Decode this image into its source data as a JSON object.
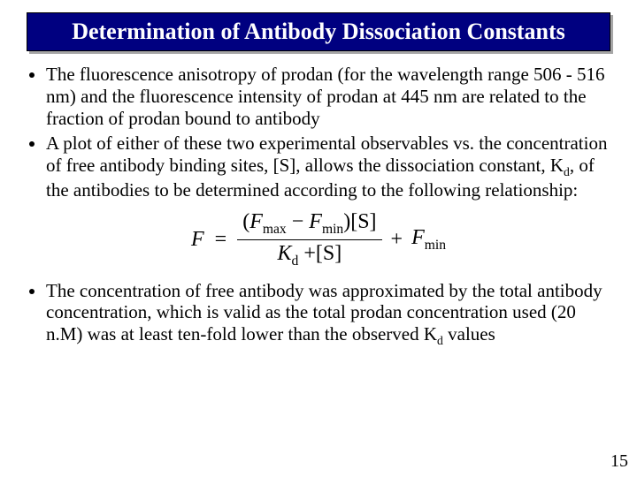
{
  "slide": {
    "title": "Determination of Antibody Dissociation Constants",
    "page_number": "15",
    "colors": {
      "title_bg": "#000080",
      "title_fg": "#ffffff",
      "body_fg": "#000000",
      "page_bg": "#ffffff"
    },
    "typography": {
      "title_fontsize_pt": 20,
      "body_fontsize_pt": 16,
      "formula_fontsize_pt": 18,
      "font_family": "Times New Roman"
    },
    "bullets": {
      "b1": "The fluorescence anisotropy of prodan (for the wavelength range 506 - 516 nm) and the fluorescence intensity of prodan at 445 nm are related to the fraction of prodan bound to antibody",
      "b2_part1": "A plot of either of these two experimental observables vs. the concentration of free antibody binding sites, [S], allows the dissociation constant, K",
      "b2_sub": "d",
      "b2_part2": ", of the antibodies to be determined according to the following relationship:",
      "b3_part1": "The concentration of free antibody was approximated by the total antibody concentration, which is valid as the total prodan concentration used (20 n.M) was at least ten-fold lower than the observed K",
      "b3_sub": "d",
      "b3_part2": " values"
    },
    "formula": {
      "F": "F",
      "eq": "=",
      "lparen": "(",
      "Fmax": "F",
      "max": "max",
      "minus": "−",
      "Fmin": "F",
      "min": "min",
      "rparen": ")",
      "S_num": "[S]",
      "Kd_K": "K",
      "Kd_d": "d",
      "plus_den": "+",
      "S_den": "[S]",
      "plus": "+",
      "Fmin2": "F",
      "min2": "min"
    }
  }
}
